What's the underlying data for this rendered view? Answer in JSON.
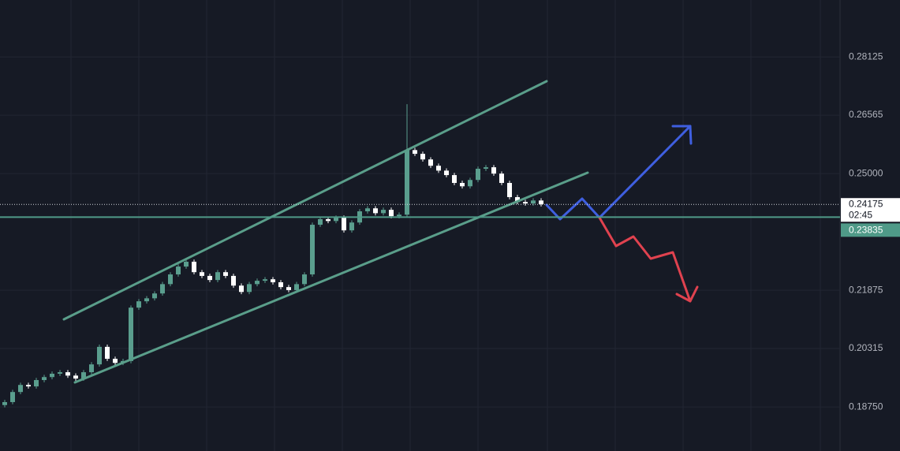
{
  "chart_data": {
    "type": "candlestick",
    "open": [
      0.188,
      0.1888,
      0.1915,
      0.1934,
      0.193,
      0.1947,
      0.1955,
      0.1964,
      0.1968,
      0.1959,
      0.1951,
      0.1968,
      0.1989,
      0.2036,
      0.2004,
      0.1993,
      0.1998,
      0.2141,
      0.2158,
      0.2166,
      0.2179,
      0.2204,
      0.223,
      0.2251,
      0.2264,
      0.2236,
      0.2226,
      0.2215,
      0.2236,
      0.2226,
      0.22,
      0.2183,
      0.2204,
      0.2213,
      0.2217,
      0.2209,
      0.2196,
      0.2188,
      0.2204,
      0.223,
      0.2363,
      0.2378,
      0.2373,
      0.2382,
      0.2348,
      0.2369,
      0.2399,
      0.2407,
      0.2394,
      0.2403,
      0.2386,
      0.239,
      0.2563,
      0.2553,
      0.2538,
      0.2521,
      0.2508,
      0.2496,
      0.2475,
      0.2466,
      0.2483,
      0.2513,
      0.2517,
      0.25,
      0.2475,
      0.2437,
      0.2424,
      0.242,
      0.2428
    ],
    "high": [
      0.1894,
      0.1921,
      0.194,
      0.194,
      0.1953,
      0.1961,
      0.197,
      0.1974,
      0.1974,
      0.1965,
      0.1974,
      0.1995,
      0.2042,
      0.2042,
      0.201,
      0.2004,
      0.2147,
      0.2164,
      0.2172,
      0.2185,
      0.221,
      0.2236,
      0.2257,
      0.227,
      0.227,
      0.2242,
      0.2232,
      0.2242,
      0.2242,
      0.2232,
      0.2206,
      0.221,
      0.2219,
      0.2223,
      0.2223,
      0.2215,
      0.2202,
      0.221,
      0.2236,
      0.2369,
      0.2384,
      0.2384,
      0.2388,
      0.2388,
      0.2375,
      0.2405,
      0.2413,
      0.2413,
      0.2409,
      0.2409,
      0.2396,
      0.2686,
      0.2569,
      0.2559,
      0.2544,
      0.2527,
      0.2514,
      0.2502,
      0.2481,
      0.2489,
      0.2519,
      0.2523,
      0.2523,
      0.2506,
      0.2481,
      0.2443,
      0.243,
      0.2434,
      0.2434
    ],
    "low": [
      0.1874,
      0.1882,
      0.1909,
      0.1924,
      0.1924,
      0.1941,
      0.1949,
      0.1958,
      0.1953,
      0.1945,
      0.1945,
      0.1962,
      0.1983,
      0.1998,
      0.1987,
      0.1987,
      0.1992,
      0.2135,
      0.2152,
      0.216,
      0.2173,
      0.2198,
      0.2224,
      0.2245,
      0.223,
      0.222,
      0.2209,
      0.2209,
      0.222,
      0.2194,
      0.2177,
      0.2177,
      0.2198,
      0.2207,
      0.2203,
      0.219,
      0.2182,
      0.2182,
      0.2198,
      0.2224,
      0.2357,
      0.2367,
      0.2367,
      0.2342,
      0.2342,
      0.2363,
      0.2393,
      0.2388,
      0.2388,
      0.238,
      0.238,
      0.2384,
      0.2547,
      0.2532,
      0.2515,
      0.2502,
      0.249,
      0.2469,
      0.246,
      0.246,
      0.2477,
      0.2507,
      0.2494,
      0.2469,
      0.2431,
      0.2418,
      0.2414,
      0.2414,
      0.2412
    ],
    "close": [
      0.1888,
      0.1915,
      0.1934,
      0.193,
      0.1947,
      0.1955,
      0.1964,
      0.1968,
      0.1959,
      0.1951,
      0.1968,
      0.1989,
      0.2036,
      0.2004,
      0.1993,
      0.1998,
      0.2141,
      0.2158,
      0.2166,
      0.2179,
      0.2204,
      0.223,
      0.2251,
      0.2264,
      0.2236,
      0.2226,
      0.2215,
      0.2236,
      0.2226,
      0.22,
      0.2183,
      0.2204,
      0.2213,
      0.2217,
      0.2209,
      0.2196,
      0.2188,
      0.2204,
      0.223,
      0.2363,
      0.2378,
      0.2373,
      0.2382,
      0.2348,
      0.2369,
      0.2399,
      0.2407,
      0.2394,
      0.2403,
      0.2386,
      0.239,
      0.2563,
      0.2553,
      0.2538,
      0.2521,
      0.2508,
      0.2496,
      0.2475,
      0.2466,
      0.2483,
      0.2513,
      0.2517,
      0.25,
      0.2475,
      0.2437,
      0.2424,
      0.242,
      0.2428,
      0.2418
    ],
    "up_color": "#5a9e8e",
    "down_color": "#ffffff",
    "ylim": [
      0.1757,
      0.2965
    ],
    "yticks": [
      {
        "value": 0.1875,
        "label": "0.18750"
      },
      0.20315,
      0.21875,
      {
        "value": 0.25,
        "label": "0.25000"
      },
      0.26565,
      0.28125
    ],
    "grid": true,
    "last_price": 0.24175,
    "countdown": "02:45",
    "level": 0.23835,
    "level_color": "#4f9a88"
  }
}
